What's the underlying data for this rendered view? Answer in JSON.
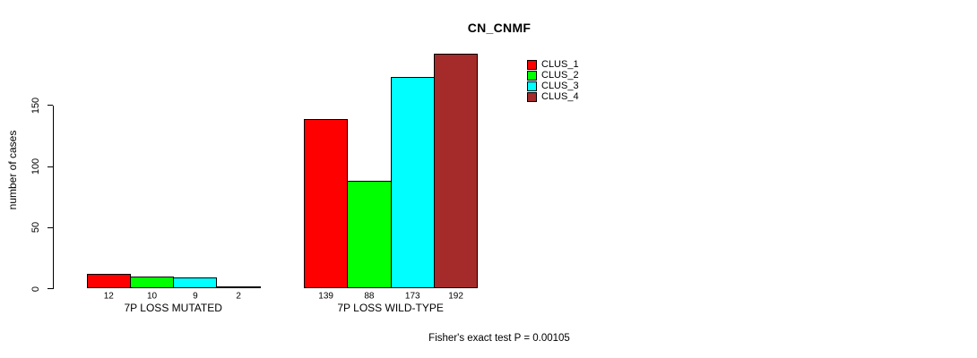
{
  "chart_data": {
    "type": "bar",
    "title": "CN_CNMF",
    "ylabel": "number of cases",
    "xlabel": "",
    "yticks": [
      0,
      50,
      100,
      150
    ],
    "ylim": [
      0,
      200
    ],
    "grid": false,
    "legend_position": "top-right",
    "categories": [
      "7P LOSS MUTATED",
      "7P LOSS WILD-TYPE"
    ],
    "series": [
      {
        "name": "CLUS_1",
        "color": "#FF0000",
        "values": [
          12,
          139
        ]
      },
      {
        "name": "CLUS_2",
        "color": "#00FF00",
        "values": [
          10,
          88
        ]
      },
      {
        "name": "CLUS_3",
        "color": "#00FFFF",
        "values": [
          9,
          173
        ]
      },
      {
        "name": "CLUS_4",
        "color": "#A52A2A",
        "values": [
          2,
          192
        ]
      }
    ],
    "bar_value_labels": {
      "7P LOSS MUTATED": [
        12,
        10,
        9,
        2
      ],
      "7P LOSS WILD-TYPE": [
        139,
        88,
        173,
        192
      ]
    },
    "footnote": "Fisher's exact test P = 0.00105",
    "axis_color": "#000000",
    "bar_border_color": "#000000"
  }
}
